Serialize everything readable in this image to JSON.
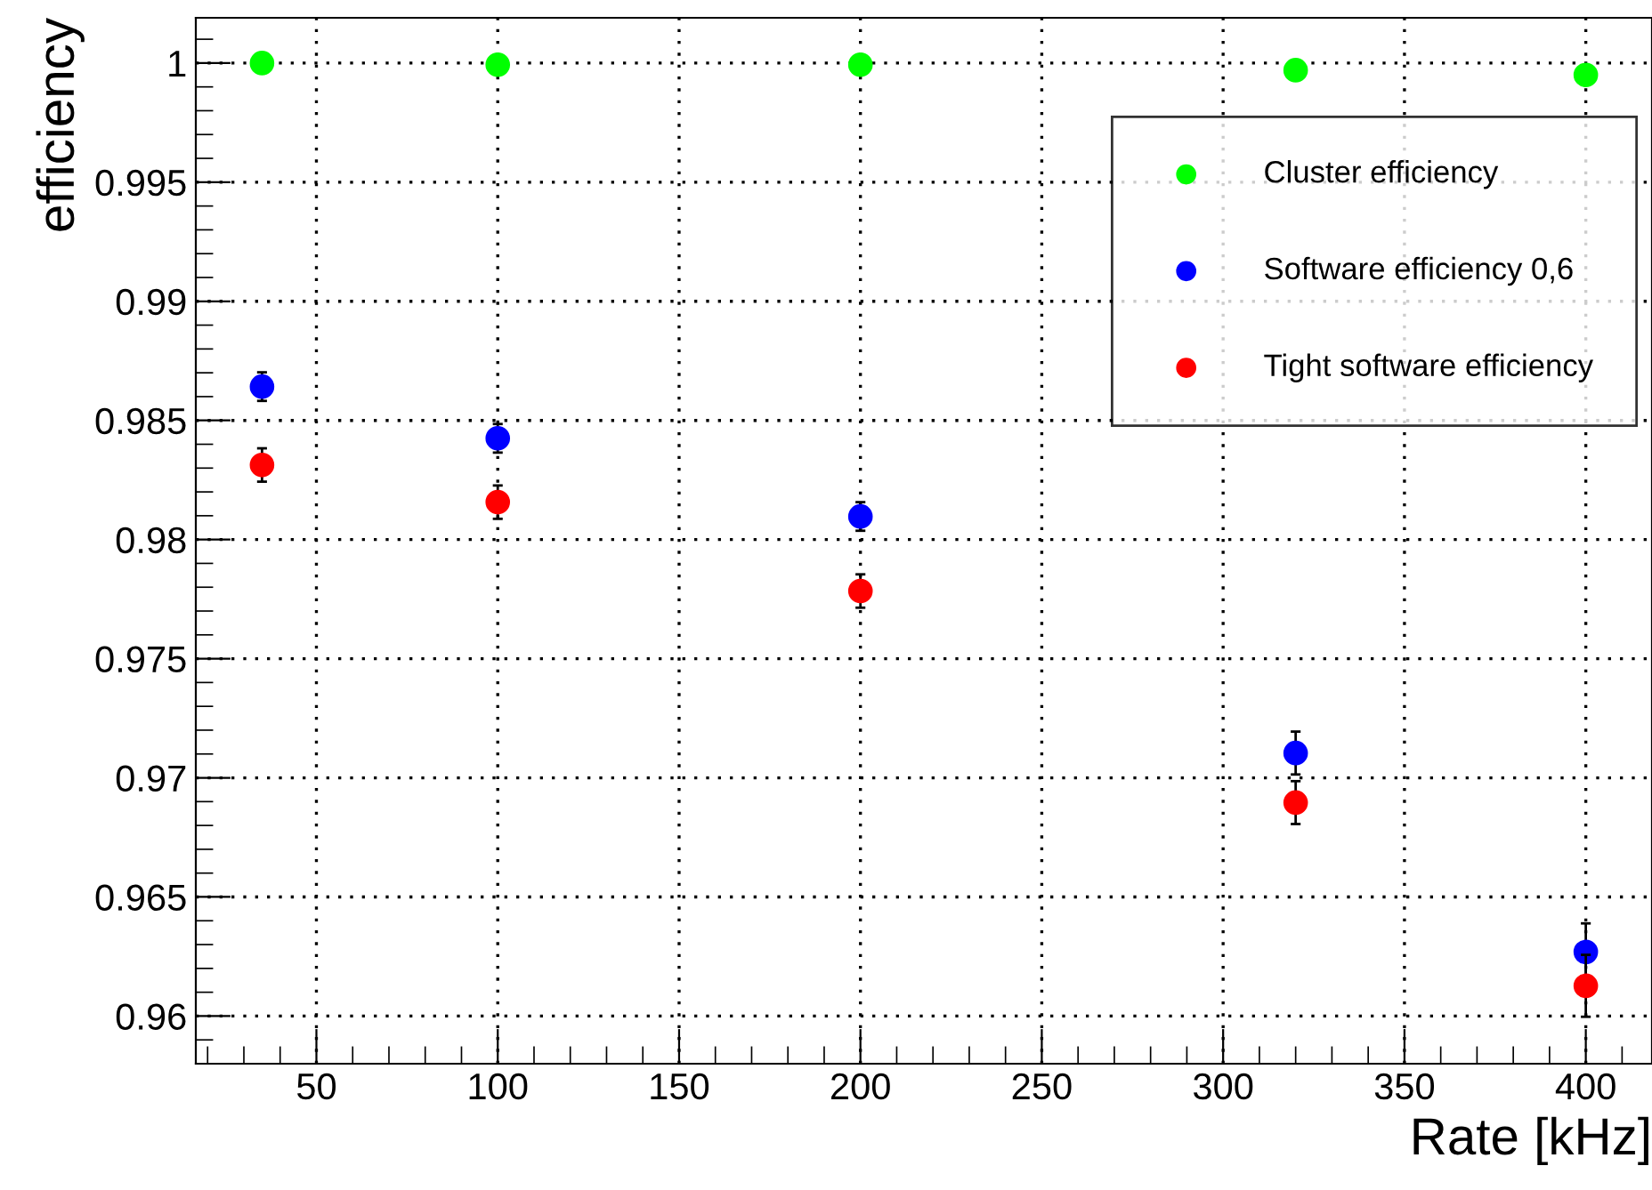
{
  "chart_data": {
    "type": "scatter",
    "xlabel": "Rate [kHz]",
    "ylabel": "efficiency",
    "x": [
      35,
      100,
      200,
      320,
      400
    ],
    "series": [
      {
        "name": "Cluster efficiency",
        "color": "#00ff00",
        "values": [
          1.0,
          0.99993,
          0.99993,
          0.9997,
          0.9995
        ]
      },
      {
        "name": "Software efficiency 0,6",
        "color": "#0000ff",
        "values": [
          0.98642,
          0.98425,
          0.98097,
          0.97104,
          0.96269
        ],
        "errors": [
          0.0006,
          0.0006,
          0.0006,
          0.0009,
          0.0012
        ]
      },
      {
        "name": "Tight software efficiency",
        "color": "#ff0000",
        "values": [
          0.98313,
          0.98157,
          0.97784,
          0.96896,
          0.96127
        ],
        "errors": [
          0.0007,
          0.0007,
          0.0007,
          0.0009,
          0.0013
        ]
      }
    ],
    "xlim": [
      16.75,
      418.25
    ],
    "xticks": [
      50,
      100,
      150,
      200,
      250,
      300,
      350,
      400
    ],
    "ylim": [
      0.958,
      1.0019
    ],
    "yticks": [
      0.96,
      0.965,
      0.97,
      0.975,
      0.98,
      0.985,
      0.99,
      0.995,
      1
    ],
    "grid": true,
    "legend": "top right",
    "marker": "circle"
  }
}
